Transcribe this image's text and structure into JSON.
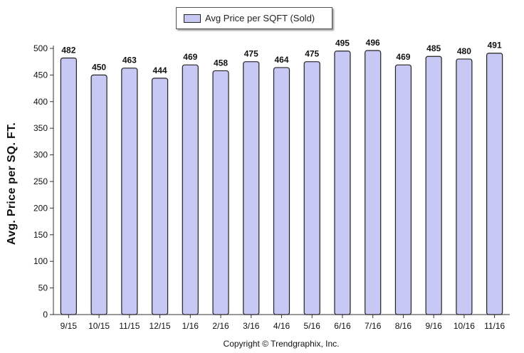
{
  "chart_data": {
    "type": "bar",
    "categories": [
      "9/15",
      "10/15",
      "11/15",
      "12/15",
      "1/16",
      "2/16",
      "3/16",
      "4/16",
      "5/16",
      "6/16",
      "7/16",
      "8/16",
      "9/16",
      "10/16",
      "11/16"
    ],
    "series": [
      {
        "name": "Avg Price per SQFT (Sold)",
        "values": [
          482,
          450,
          463,
          444,
          469,
          458,
          475,
          464,
          475,
          495,
          496,
          469,
          485,
          480,
          491
        ]
      }
    ],
    "ylabel": "Avg. Price per SQ. FT.",
    "xlabel": "",
    "ylim": [
      0,
      500
    ],
    "yticks": [
      0,
      50,
      100,
      150,
      200,
      250,
      300,
      350,
      400,
      450,
      500
    ],
    "legend": "top-center",
    "grid": false,
    "colors": {
      "bar_fill": "#c8c8f4",
      "bar_stroke": "#222222"
    }
  },
  "footer": {
    "copyright": "Copyright © Trendgraphix, Inc."
  }
}
